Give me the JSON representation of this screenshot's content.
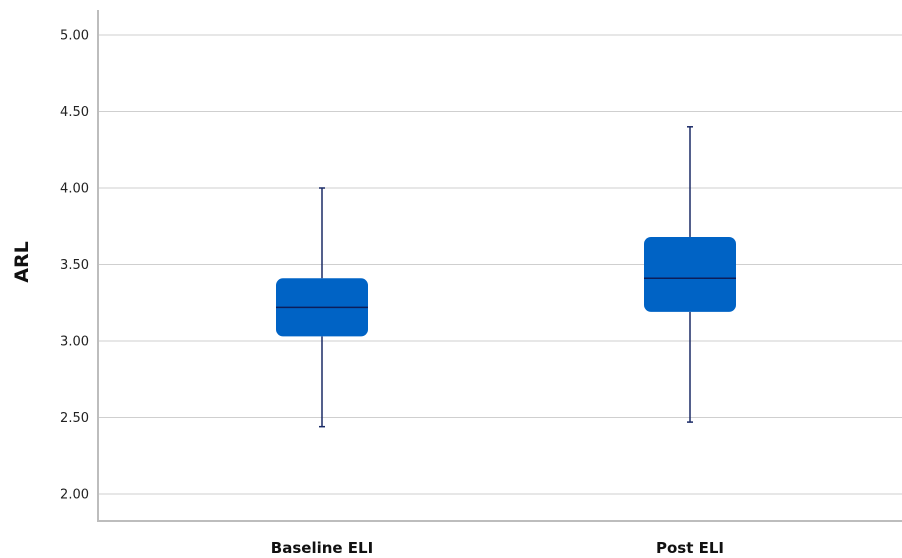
{
  "chart_data": {
    "type": "box",
    "ylabel": "ARL",
    "ylim": [
      1.85,
      5.1
    ],
    "yticks": [
      "2.00",
      "2.50",
      "3.00",
      "3.50",
      "4.00",
      "4.50",
      "5.00"
    ],
    "categories": [
      "Baseline ELI",
      "Post ELI"
    ],
    "boxes": [
      {
        "category": "Baseline ELI",
        "min": 2.44,
        "q1": 3.03,
        "median": 3.22,
        "q3": 3.41,
        "max": 4.0
      },
      {
        "category": "Post ELI",
        "min": 2.47,
        "q1": 3.19,
        "median": 3.41,
        "q3": 3.68,
        "max": 4.4
      }
    ],
    "box_color": "#0063c5",
    "grid": true,
    "legend": "none"
  }
}
